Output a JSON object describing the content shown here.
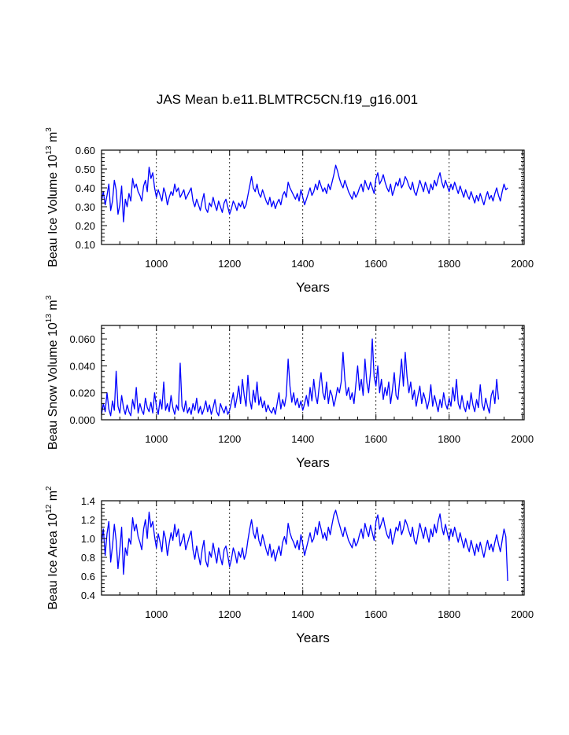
{
  "title": "JAS Mean b.e11.BLMTRC5CN.f19_g16.001",
  "line_color": "#0000ff",
  "chart_data": [
    {
      "type": "line",
      "xlabel": "Years",
      "ylabel": {
        "prefix": "Beau Ice Volume 10",
        "exp": "13",
        "unit": " m",
        "unit_exp": "3"
      },
      "xlim": [
        850,
        2005
      ],
      "ylim": [
        0.1,
        0.6
      ],
      "xticks": [
        1000,
        1200,
        1400,
        1600,
        1800,
        2000
      ],
      "xtick_labels": [
        "1000",
        "1200",
        "1400",
        "1600",
        "1800",
        "2000"
      ],
      "yticks": [
        0.1,
        0.2,
        0.3,
        0.4,
        0.5,
        0.6
      ],
      "ytick_labels": [
        "0.10",
        "0.20",
        "0.30",
        "0.40",
        "0.50",
        "0.60"
      ],
      "grid": "dashed vertical at x ticks",
      "series": [
        {
          "x_start": 850,
          "x_step": 5,
          "values": [
            0.33,
            0.38,
            0.31,
            0.36,
            0.42,
            0.28,
            0.33,
            0.44,
            0.39,
            0.26,
            0.31,
            0.41,
            0.22,
            0.34,
            0.3,
            0.37,
            0.33,
            0.45,
            0.4,
            0.42,
            0.38,
            0.36,
            0.33,
            0.41,
            0.44,
            0.38,
            0.51,
            0.45,
            0.48,
            0.4,
            0.35,
            0.39,
            0.36,
            0.33,
            0.4,
            0.37,
            0.31,
            0.35,
            0.38,
            0.36,
            0.42,
            0.38,
            0.4,
            0.35,
            0.37,
            0.39,
            0.34,
            0.36,
            0.38,
            0.4,
            0.33,
            0.3,
            0.34,
            0.31,
            0.28,
            0.33,
            0.37,
            0.29,
            0.27,
            0.32,
            0.3,
            0.35,
            0.31,
            0.28,
            0.33,
            0.3,
            0.27,
            0.32,
            0.34,
            0.3,
            0.26,
            0.29,
            0.33,
            0.31,
            0.28,
            0.32,
            0.3,
            0.33,
            0.29,
            0.31,
            0.36,
            0.41,
            0.46,
            0.4,
            0.38,
            0.42,
            0.37,
            0.35,
            0.39,
            0.36,
            0.33,
            0.31,
            0.35,
            0.3,
            0.33,
            0.29,
            0.32,
            0.34,
            0.31,
            0.36,
            0.38,
            0.35,
            0.43,
            0.4,
            0.38,
            0.36,
            0.34,
            0.37,
            0.33,
            0.39,
            0.35,
            0.31,
            0.34,
            0.37,
            0.4,
            0.36,
            0.38,
            0.42,
            0.39,
            0.44,
            0.41,
            0.38,
            0.4,
            0.37,
            0.42,
            0.39,
            0.43,
            0.47,
            0.52,
            0.49,
            0.45,
            0.42,
            0.4,
            0.44,
            0.41,
            0.38,
            0.36,
            0.34,
            0.38,
            0.35,
            0.37,
            0.4,
            0.42,
            0.38,
            0.44,
            0.41,
            0.39,
            0.43,
            0.4,
            0.37,
            0.45,
            0.48,
            0.42,
            0.44,
            0.47,
            0.43,
            0.4,
            0.38,
            0.42,
            0.36,
            0.39,
            0.43,
            0.41,
            0.45,
            0.4,
            0.42,
            0.46,
            0.44,
            0.41,
            0.39,
            0.43,
            0.38,
            0.36,
            0.4,
            0.44,
            0.41,
            0.38,
            0.43,
            0.4,
            0.37,
            0.42,
            0.39,
            0.44,
            0.41,
            0.45,
            0.48,
            0.43,
            0.4,
            0.44,
            0.41,
            0.38,
            0.42,
            0.39,
            0.43,
            0.4,
            0.37,
            0.41,
            0.38,
            0.35,
            0.39,
            0.36,
            0.34,
            0.38,
            0.35,
            0.32,
            0.36,
            0.33,
            0.37,
            0.34,
            0.31,
            0.35,
            0.38,
            0.34,
            0.36,
            0.33,
            0.37,
            0.4,
            0.36,
            0.33,
            0.38,
            0.42,
            0.39,
            0.4
          ]
        }
      ]
    },
    {
      "type": "line",
      "xlabel": "Years",
      "ylabel": {
        "prefix": "Beau Snow Volume 10",
        "exp": "13",
        "unit": " m",
        "unit_exp": "3"
      },
      "xlim": [
        850,
        2005
      ],
      "ylim": [
        0.0,
        0.07
      ],
      "xticks": [
        1000,
        1200,
        1400,
        1600,
        1800,
        2000
      ],
      "xtick_labels": [
        "1000",
        "1200",
        "1400",
        "1600",
        "1800",
        "2000"
      ],
      "yticks": [
        0.0,
        0.02,
        0.04,
        0.06
      ],
      "ytick_labels": [
        "0.000",
        "0.020",
        "0.040",
        "0.060"
      ],
      "grid": "dashed vertical at x ticks",
      "series": [
        {
          "x_start": 850,
          "x_step": 5,
          "values": [
            0.004,
            0.012,
            0.006,
            0.02,
            0.008,
            0.003,
            0.014,
            0.007,
            0.036,
            0.01,
            0.005,
            0.018,
            0.009,
            0.004,
            0.011,
            0.006,
            0.003,
            0.015,
            0.008,
            0.024,
            0.005,
            0.012,
            0.007,
            0.004,
            0.016,
            0.009,
            0.006,
            0.013,
            0.005,
            0.02,
            0.01,
            0.004,
            0.015,
            0.008,
            0.028,
            0.007,
            0.012,
            0.006,
            0.018,
            0.009,
            0.004,
            0.011,
            0.007,
            0.042,
            0.01,
            0.006,
            0.014,
            0.005,
            0.009,
            0.004,
            0.012,
            0.007,
            0.016,
            0.005,
            0.01,
            0.004,
            0.008,
            0.014,
            0.006,
            0.011,
            0.004,
            0.009,
            0.015,
            0.006,
            0.003,
            0.012,
            0.008,
            0.005,
            0.01,
            0.004,
            0.007,
            0.013,
            0.02,
            0.009,
            0.016,
            0.025,
            0.012,
            0.03,
            0.018,
            0.01,
            0.033,
            0.015,
            0.008,
            0.022,
            0.013,
            0.028,
            0.011,
            0.017,
            0.009,
            0.014,
            0.006,
            0.011,
            0.007,
            0.005,
            0.009,
            0.004,
            0.012,
            0.02,
            0.008,
            0.015,
            0.01,
            0.018,
            0.045,
            0.025,
            0.013,
            0.02,
            0.011,
            0.016,
            0.009,
            0.014,
            0.007,
            0.012,
            0.018,
            0.01,
            0.024,
            0.014,
            0.03,
            0.018,
            0.012,
            0.025,
            0.035,
            0.02,
            0.015,
            0.028,
            0.012,
            0.022,
            0.018,
            0.01,
            0.016,
            0.024,
            0.02,
            0.028,
            0.05,
            0.03,
            0.018,
            0.024,
            0.015,
            0.02,
            0.012,
            0.026,
            0.04,
            0.022,
            0.03,
            0.018,
            0.045,
            0.028,
            0.02,
            0.035,
            0.06,
            0.032,
            0.025,
            0.04,
            0.02,
            0.03,
            0.015,
            0.024,
            0.018,
            0.028,
            0.012,
            0.022,
            0.035,
            0.018,
            0.015,
            0.03,
            0.045,
            0.025,
            0.05,
            0.032,
            0.02,
            0.028,
            0.015,
            0.022,
            0.01,
            0.018,
            0.025,
            0.012,
            0.02,
            0.015,
            0.008,
            0.014,
            0.026,
            0.01,
            0.018,
            0.012,
            0.006,
            0.015,
            0.009,
            0.02,
            0.012,
            0.008,
            0.016,
            0.01,
            0.024,
            0.014,
            0.03,
            0.012,
            0.008,
            0.018,
            0.01,
            0.006,
            0.014,
            0.008,
            0.02,
            0.011,
            0.006,
            0.015,
            0.009,
            0.026,
            0.012,
            0.007,
            0.016,
            0.01,
            0.005,
            0.018,
            0.022,
            0.012,
            0.03,
            0.015
          ]
        }
      ]
    },
    {
      "type": "line",
      "xlabel": "Years",
      "ylabel": {
        "prefix": "Beau Ice Area 10",
        "exp": "12",
        "unit": " m",
        "unit_exp": "2"
      },
      "xlim": [
        850,
        2005
      ],
      "ylim": [
        0.4,
        1.4
      ],
      "xticks": [
        1000,
        1200,
        1400,
        1600,
        1800,
        2000
      ],
      "xtick_labels": [
        "1000",
        "1200",
        "1400",
        "1600",
        "1800",
        "2000"
      ],
      "yticks": [
        0.4,
        0.6,
        0.8,
        1.0,
        1.2,
        1.4
      ],
      "ytick_labels": [
        "0.4",
        "0.6",
        "0.8",
        "1.0",
        "1.2",
        "1.4"
      ],
      "grid": "dashed vertical at x ticks",
      "series": [
        {
          "x_start": 850,
          "x_step": 5,
          "values": [
            0.95,
            1.1,
            0.82,
            1.05,
            1.18,
            0.75,
            0.92,
            1.15,
            0.98,
            0.68,
            0.88,
            1.12,
            0.62,
            0.9,
            0.82,
            1.0,
            0.94,
            1.22,
            1.08,
            1.15,
            1.02,
            0.96,
            0.88,
            1.1,
            1.2,
            1.0,
            1.28,
            1.12,
            1.18,
            1.02,
            0.9,
            1.05,
            0.96,
            0.86,
            1.08,
            1.0,
            0.82,
            0.95,
            1.06,
            0.98,
            1.15,
            1.02,
            1.1,
            0.92,
            0.98,
            1.05,
            0.88,
            0.95,
            1.02,
            1.08,
            0.88,
            0.78,
            0.92,
            0.82,
            0.72,
            0.88,
            0.98,
            0.76,
            0.7,
            0.86,
            0.8,
            0.95,
            0.84,
            0.74,
            0.9,
            0.8,
            0.72,
            0.88,
            0.92,
            0.82,
            0.7,
            0.78,
            0.9,
            0.84,
            0.74,
            0.86,
            0.8,
            0.9,
            0.78,
            0.84,
            0.98,
            1.1,
            1.2,
            1.06,
            1.0,
            1.12,
            0.98,
            0.92,
            1.04,
            0.96,
            0.88,
            0.82,
            0.94,
            0.8,
            0.88,
            0.76,
            0.85,
            0.92,
            0.82,
            0.96,
            1.02,
            0.94,
            1.16,
            1.06,
            1.0,
            0.96,
            0.9,
            0.98,
            0.88,
            1.04,
            0.94,
            0.82,
            0.9,
            0.98,
            1.06,
            0.96,
            1.0,
            1.12,
            1.04,
            1.18,
            1.1,
            1.0,
            1.06,
            0.98,
            1.12,
            1.04,
            1.15,
            1.25,
            1.3,
            1.22,
            1.15,
            1.08,
            1.02,
            1.12,
            1.05,
            0.98,
            0.94,
            0.9,
            1.0,
            0.92,
            0.96,
            1.04,
            1.1,
            1.0,
            1.16,
            1.08,
            1.02,
            1.14,
            1.06,
            0.98,
            1.18,
            1.25,
            1.1,
            1.16,
            1.22,
            1.12,
            1.04,
            1.0,
            1.1,
            0.94,
            1.02,
            1.12,
            1.08,
            1.18,
            1.04,
            1.1,
            1.2,
            1.15,
            1.08,
            1.02,
            1.12,
            0.98,
            0.94,
            1.05,
            1.16,
            1.08,
            1.0,
            1.12,
            1.04,
            0.96,
            1.1,
            1.02,
            1.15,
            1.06,
            1.18,
            1.26,
            1.12,
            1.04,
            1.15,
            1.06,
            0.98,
            1.1,
            1.02,
            1.12,
            1.04,
            0.96,
            1.06,
            0.98,
            0.9,
            1.0,
            0.92,
            0.86,
            0.98,
            0.9,
            0.82,
            0.94,
            0.86,
            0.96,
            0.88,
            0.8,
            0.9,
            0.98,
            0.88,
            0.94,
            0.86,
            0.96,
            1.04,
            0.94,
            0.86,
            0.98,
            1.1,
            1.02,
            0.55
          ]
        }
      ]
    }
  ]
}
